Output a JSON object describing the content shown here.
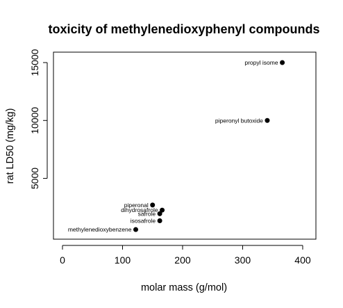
{
  "chart_data": {
    "type": "scatter",
    "title": "toxicity of methylenedioxyphenyl compounds",
    "xlabel": "molar mass (g/mol)",
    "ylabel": "rat LD50 (mg/kg)",
    "xlim": [
      -15,
      422
    ],
    "ylim": [
      -250,
      15900
    ],
    "xticks": [
      0,
      100,
      200,
      300,
      400
    ],
    "yticks": [
      5000,
      10000,
      15000
    ],
    "grid": false,
    "points": [
      {
        "label": "propyl isome",
        "x": 366,
        "y": 15000
      },
      {
        "label": "piperonyl butoxide",
        "x": 341,
        "y": 10000
      },
      {
        "label": "piperonal",
        "x": 150,
        "y": 2700
      },
      {
        "label": "dihydrosafrole",
        "x": 166,
        "y": 2260
      },
      {
        "label": "safrole",
        "x": 162,
        "y": 1950
      },
      {
        "label": "isosafrole",
        "x": 162,
        "y": 1340
      },
      {
        "label": "methylenedioxybenzene",
        "x": 122,
        "y": 580
      }
    ]
  }
}
